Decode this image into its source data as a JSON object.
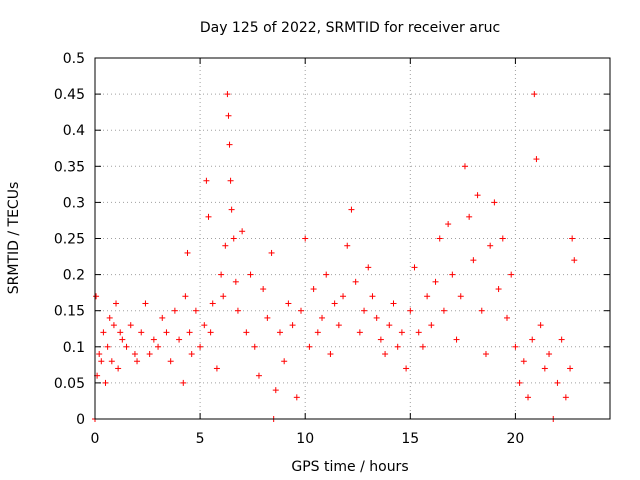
{
  "chart_data": {
    "type": "scatter",
    "title": "Day 125 of 2022, SRMTID for receiver aruc",
    "xlabel": "GPS time / hours",
    "ylabel": "SRMTID / TECUs",
    "xlim": [
      0,
      24.5
    ],
    "ylim": [
      0,
      0.5
    ],
    "x_ticks": [
      0,
      5,
      10,
      15,
      20
    ],
    "x_tick_labels": [
      "0",
      "5",
      "10",
      "15",
      "20"
    ],
    "y_ticks": [
      0,
      0.05,
      0.1,
      0.15,
      0.2,
      0.25,
      0.3,
      0.35,
      0.4,
      0.45,
      0.5
    ],
    "y_tick_labels": [
      "0",
      "0.05",
      "0.1",
      "0.15",
      "0.2",
      "0.25",
      "0.3",
      "0.35",
      "0.4",
      "0.45",
      "0.5"
    ],
    "grid": true,
    "marker": "+",
    "series": [
      {
        "name": "SRMTID",
        "color": "#ff0000",
        "x": [
          0.0,
          0.05,
          0.1,
          0.2,
          0.3,
          0.4,
          0.5,
          0.6,
          0.7,
          0.8,
          0.9,
          1.0,
          1.1,
          1.2,
          1.3,
          1.5,
          1.7,
          1.9,
          2.0,
          2.2,
          2.4,
          2.6,
          2.8,
          3.0,
          3.2,
          3.4,
          3.6,
          3.8,
          4.0,
          4.2,
          4.3,
          4.4,
          4.5,
          4.6,
          4.8,
          5.0,
          5.2,
          5.3,
          5.4,
          5.5,
          5.6,
          5.8,
          6.0,
          6.1,
          6.2,
          6.3,
          6.35,
          6.4,
          6.45,
          6.5,
          6.6,
          6.7,
          6.8,
          7.0,
          7.2,
          7.4,
          7.6,
          7.8,
          8.0,
          8.2,
          8.4,
          8.5,
          8.6,
          8.8,
          9.0,
          9.2,
          9.4,
          9.6,
          9.8,
          10.0,
          10.2,
          10.4,
          10.6,
          10.8,
          11.0,
          11.2,
          11.4,
          11.6,
          11.8,
          12.0,
          12.2,
          12.4,
          12.6,
          12.8,
          13.0,
          13.2,
          13.4,
          13.6,
          13.8,
          14.0,
          14.2,
          14.4,
          14.6,
          14.8,
          15.0,
          15.2,
          15.4,
          15.6,
          15.8,
          16.0,
          16.2,
          16.4,
          16.6,
          16.8,
          17.0,
          17.2,
          17.4,
          17.6,
          17.8,
          18.0,
          18.2,
          18.4,
          18.6,
          18.8,
          19.0,
          19.2,
          19.4,
          19.6,
          19.8,
          20.0,
          20.2,
          20.4,
          20.6,
          20.8,
          20.9,
          21.0,
          21.2,
          21.4,
          21.6,
          21.8,
          22.0,
          22.2,
          22.4,
          22.6,
          22.7,
          22.8
        ],
        "y": [
          0.0,
          0.17,
          0.06,
          0.09,
          0.08,
          0.12,
          0.05,
          0.1,
          0.14,
          0.08,
          0.13,
          0.16,
          0.07,
          0.12,
          0.11,
          0.1,
          0.13,
          0.09,
          0.08,
          0.12,
          0.16,
          0.09,
          0.11,
          0.1,
          0.14,
          0.12,
          0.08,
          0.15,
          0.11,
          0.05,
          0.17,
          0.23,
          0.12,
          0.09,
          0.15,
          0.1,
          0.13,
          0.33,
          0.28,
          0.12,
          0.16,
          0.07,
          0.2,
          0.17,
          0.24,
          0.45,
          0.42,
          0.38,
          0.33,
          0.29,
          0.25,
          0.19,
          0.15,
          0.26,
          0.12,
          0.2,
          0.1,
          0.06,
          0.18,
          0.14,
          0.23,
          0.0,
          0.04,
          0.12,
          0.08,
          0.16,
          0.13,
          0.03,
          0.15,
          0.25,
          0.1,
          0.18,
          0.12,
          0.14,
          0.2,
          0.09,
          0.16,
          0.13,
          0.17,
          0.24,
          0.29,
          0.19,
          0.12,
          0.15,
          0.21,
          0.17,
          0.14,
          0.11,
          0.09,
          0.13,
          0.16,
          0.1,
          0.12,
          0.07,
          0.15,
          0.21,
          0.12,
          0.1,
          0.17,
          0.13,
          0.19,
          0.25,
          0.15,
          0.27,
          0.2,
          0.11,
          0.17,
          0.35,
          0.28,
          0.22,
          0.31,
          0.15,
          0.09,
          0.24,
          0.3,
          0.18,
          0.25,
          0.14,
          0.2,
          0.1,
          0.05,
          0.08,
          0.03,
          0.11,
          0.45,
          0.36,
          0.13,
          0.07,
          0.09,
          0.0,
          0.05,
          0.11,
          0.03,
          0.07,
          0.25,
          0.22
        ]
      }
    ]
  }
}
